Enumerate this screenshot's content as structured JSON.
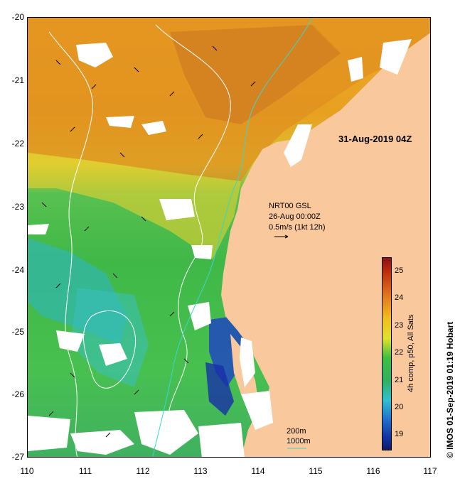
{
  "map": {
    "date_stamp": "31-Aug-2019 04Z",
    "current_source": "NRT00 GSL",
    "current_time": "26-Aug 00:00Z",
    "arrow_scale": "0.5m/s (1kt 12h)",
    "contour_200": "200m",
    "contour_1000": "1000m",
    "copyright": "© IMOS 01-Sep-2019 01:19 Hobart",
    "colorbar_title": "4h comp, p50, All Sats",
    "colorbar_labels": [
      "25",
      "24",
      "23",
      "22",
      "21",
      "20",
      "19"
    ],
    "x_ticks": [
      "110",
      "111",
      "112",
      "113",
      "114",
      "115",
      "116",
      "117"
    ],
    "y_ticks": [
      "-20",
      "-21",
      "-22",
      "-23",
      "-24",
      "-25",
      "-26",
      "-27"
    ],
    "colors": {
      "land": "#f9c89c",
      "cloud": "#ffffff",
      "contour_200": "#38d6cf",
      "contour_1000": "#ffffff"
    },
    "sst_range": [
      18.5,
      25.5
    ]
  }
}
